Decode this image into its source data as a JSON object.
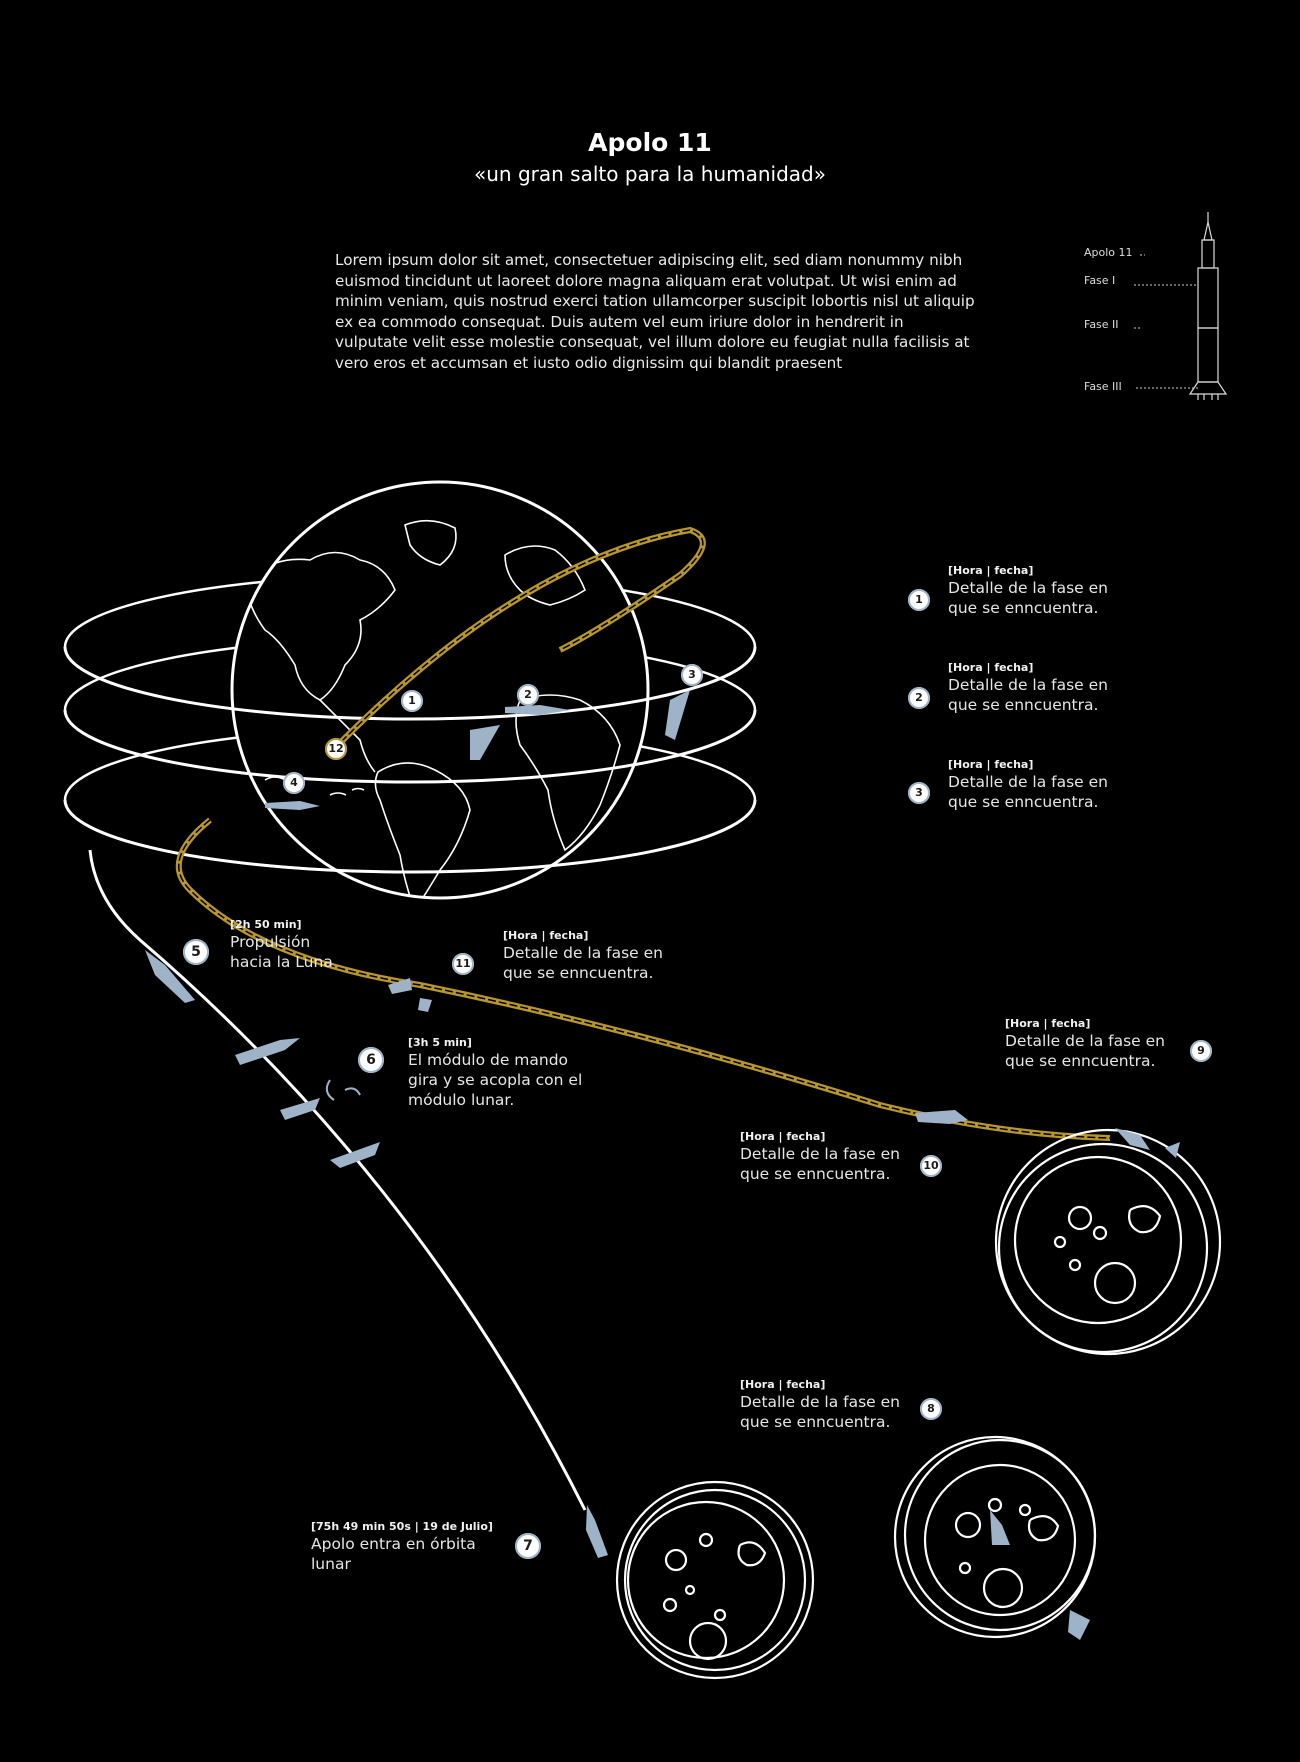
{
  "header": {
    "title": "Apolo 11",
    "subtitle": "«un gran salto para la humanidad»"
  },
  "intro": "Lorem ipsum dolor sit amet, consectetuer adipiscing elit, sed diam nonummy nibh euismod tincidunt ut laoreet dolore magna aliquam erat volutpat. Ut wisi enim ad minim veniam, quis nostrud exerci tation ullamcorper suscipit lobortis nisl ut aliquip ex ea commodo consequat. Duis autem vel eum iriure dolor in hendrerit in vulputate velit esse molestie consequat, vel illum dolore eu feugiat nulla facilisis at vero eros et accumsan et iusto odio dignissim qui blandit praesent",
  "rocket_diagram": {
    "labels": [
      "Apolo 11",
      "Fase I",
      "Fase II",
      "Fase III"
    ]
  },
  "annotations": [
    {
      "number": "1",
      "time": "[Hora | fecha]",
      "desc": "Detalle de la fase en\nque se enncuentra."
    },
    {
      "number": "2",
      "time": "[Hora | fecha]",
      "desc": "Detalle de la fase en\nque se enncuentra."
    },
    {
      "number": "3",
      "time": "[Hora | fecha]",
      "desc": "Detalle de la fase en\nque se enncuentra."
    },
    {
      "number": "5",
      "time": "[2h 50 min]",
      "desc": "Propulsión\nhacia la Luna"
    },
    {
      "number": "11",
      "time": "[Hora | fecha]",
      "desc": "Detalle de la fase en\nque se enncuentra."
    },
    {
      "number": "6",
      "time": "[3h 5 min]",
      "desc": "El módulo de  mando\ngira y se acopla con el\nmódulo lunar."
    },
    {
      "number": "9",
      "time": "[Hora | fecha]",
      "desc": "Detalle de la fase en\nque se enncuentra."
    },
    {
      "number": "10",
      "time": "[Hora | fecha]",
      "desc": "Detalle de la fase en\nque se enncuentra."
    },
    {
      "number": "8",
      "time": "[Hora | fecha]",
      "desc": "Detalle de la fase en\nque se enncuentra."
    },
    {
      "number": "7",
      "time": "[75h 49 min 50s  | 19 de Julio]",
      "desc": "Apolo entra en órbita\nlunar"
    }
  ],
  "map_markers": [
    "1",
    "2",
    "3",
    "4",
    "12"
  ],
  "colors": {
    "background": "#000000",
    "line": "#ffffff",
    "return_path": "#b8962e",
    "spacecraft": "#9fb3c8"
  }
}
